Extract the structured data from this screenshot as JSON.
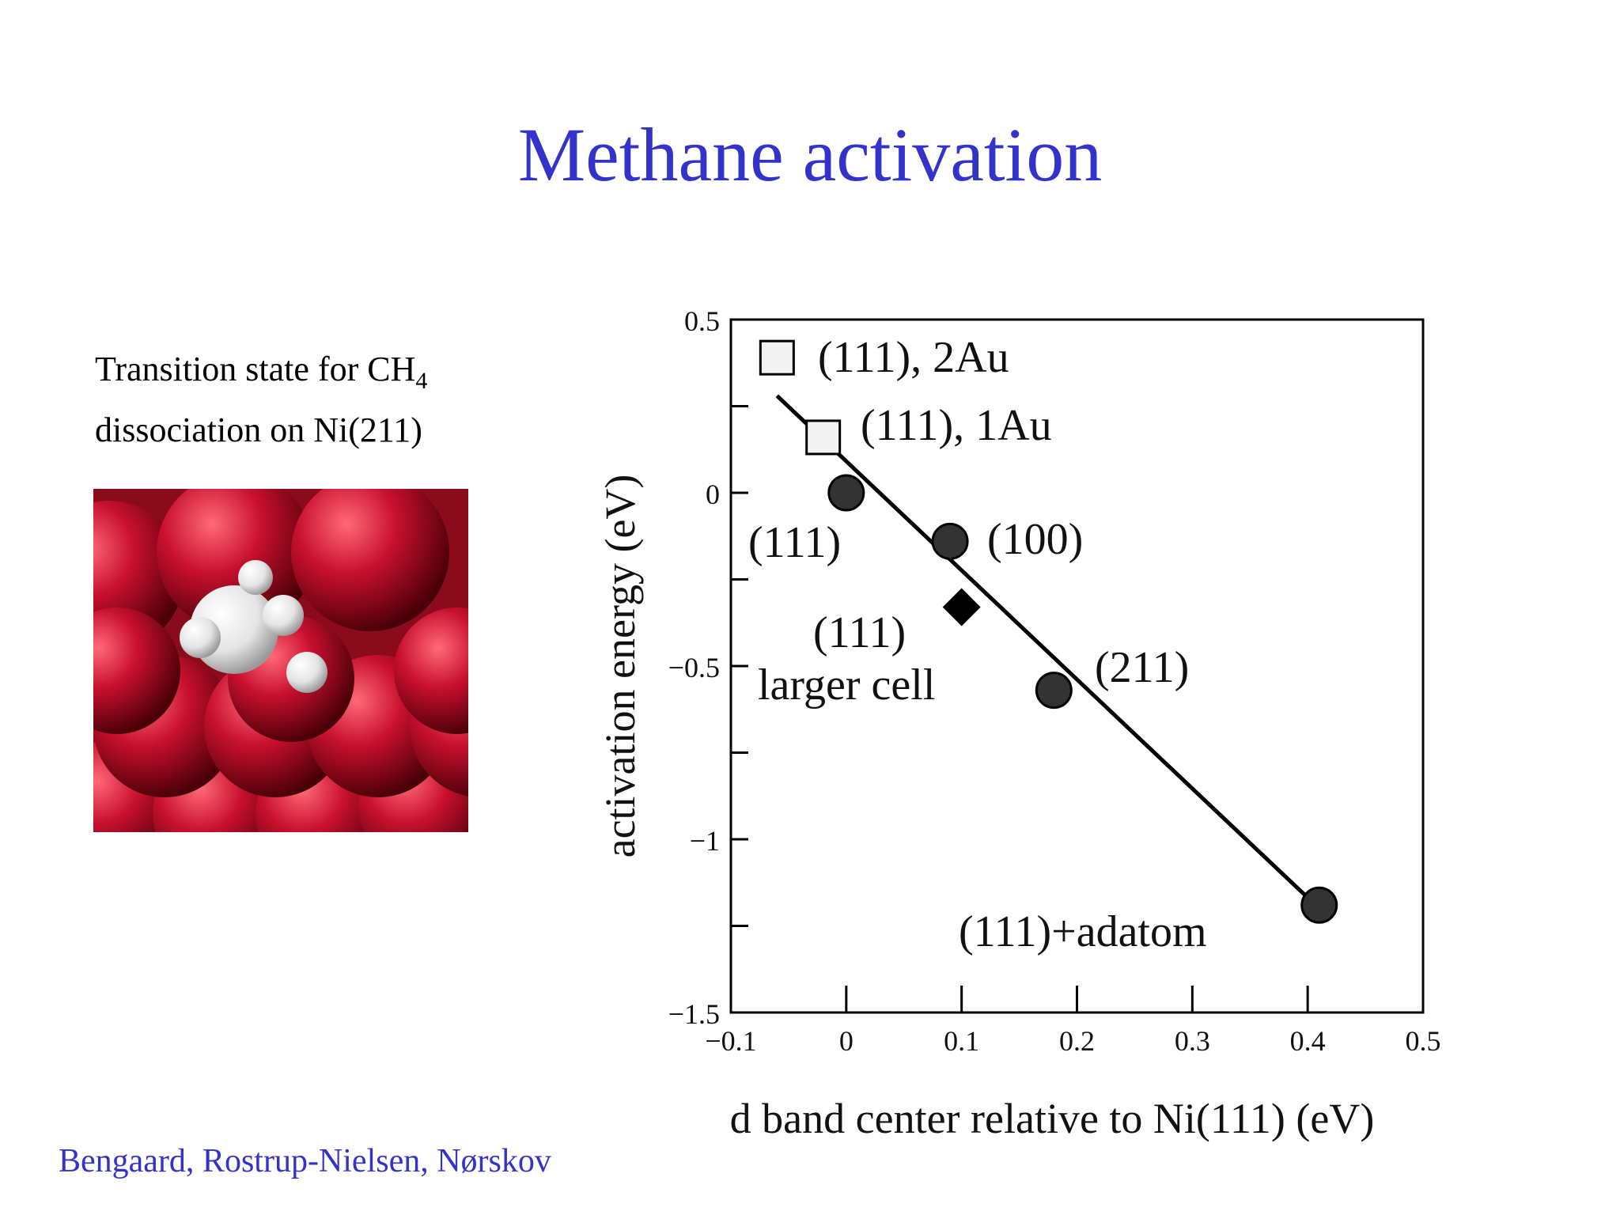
{
  "slide": {
    "title": "Methane activation",
    "caption_prefix": "Transition state for CH",
    "caption_sub": "4",
    "caption_line2": "dissociation on Ni(211)",
    "credit": "Bengaard, Rostrup-Nielsen, Nørskov"
  },
  "colors": {
    "title": "#3333cc",
    "surface": "#c8102e",
    "hydrogen": "#f2f2f2"
  },
  "chart_data": {
    "type": "scatter",
    "xlabel": "d band center relative to Ni(111) (eV)",
    "ylabel": "activation energy (eV)",
    "xlim": [
      -0.1,
      0.5
    ],
    "ylim": [
      -1.5,
      0.5
    ],
    "xticks": [
      -0.1,
      0,
      0.1,
      0.2,
      0.3,
      0.4,
      0.5
    ],
    "xtick_labels": [
      "−0.1",
      "0",
      "0.1",
      "0.2",
      "0.3",
      "0.4",
      "0.5"
    ],
    "yticks": [
      0.5,
      0,
      -0.5,
      -1,
      -1.5
    ],
    "ytick_labels": [
      "0.5",
      "0",
      "−0.5",
      "−1",
      "−1.5"
    ],
    "grid": false,
    "points": [
      {
        "label": "(111), 2Au",
        "x": -0.06,
        "y": 0.39,
        "marker": "square"
      },
      {
        "label": "(111), 1Au",
        "x": -0.02,
        "y": 0.16,
        "marker": "square"
      },
      {
        "label": "(111)",
        "x": 0.0,
        "y": 0.0,
        "marker": "circle"
      },
      {
        "label": "(100)",
        "x": 0.09,
        "y": -0.14,
        "marker": "circle"
      },
      {
        "label": "(111) larger cell",
        "x": 0.1,
        "y": -0.33,
        "marker": "diamond"
      },
      {
        "label": "(211)",
        "x": 0.18,
        "y": -0.57,
        "marker": "circle"
      },
      {
        "label": "(111)+adatom",
        "x": 0.41,
        "y": -1.19,
        "marker": "circle"
      }
    ],
    "fit_line": {
      "x": [
        -0.06,
        0.41
      ],
      "y": [
        0.28,
        -1.2
      ]
    },
    "annotations": [
      "(111), 2Au",
      "(111), 1Au",
      "(111)",
      "(100)",
      "(111)",
      "larger cell",
      "(211)",
      "(111)+adatom"
    ]
  }
}
